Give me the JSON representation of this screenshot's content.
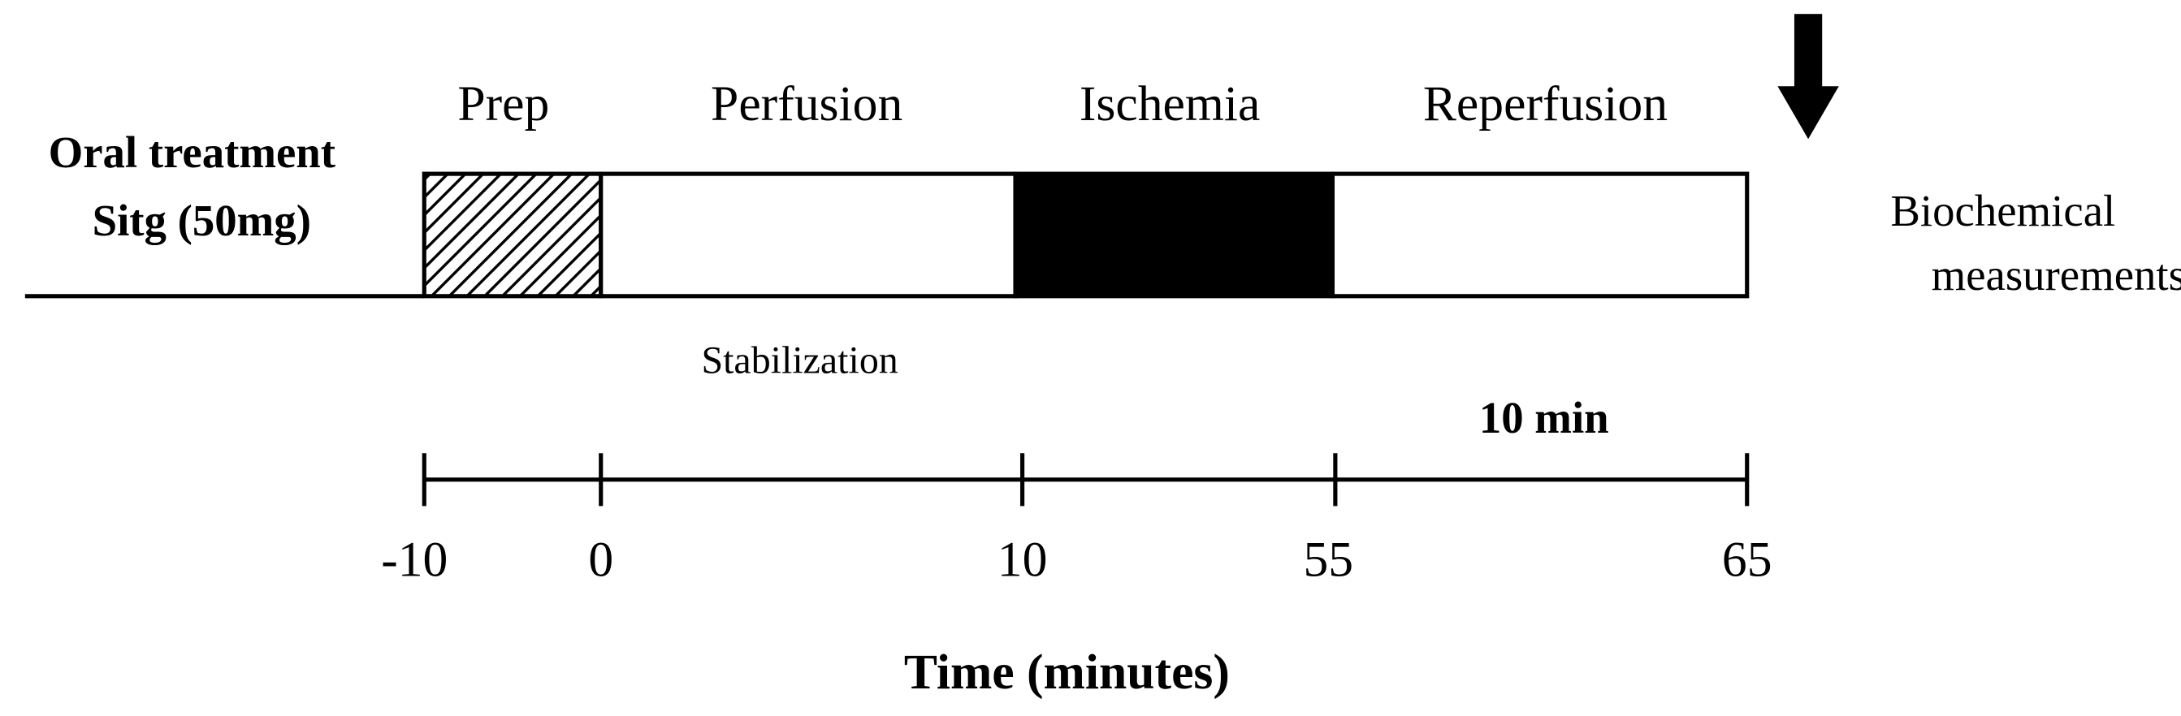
{
  "treatment": {
    "line1": "Oral treatment",
    "line2": "Sitg (50mg)"
  },
  "phases": [
    "Prep",
    "Perfusion",
    "Ischemia",
    "Reperfusion"
  ],
  "stabilization": "Stabilization",
  "endpoint": {
    "line1": "Biochemical",
    "line2": "measurements"
  },
  "scale_note": "10 min",
  "timeline": {
    "ticks": [
      "-10",
      "0",
      "10",
      "55",
      "65"
    ],
    "label": "Time (minutes)"
  }
}
